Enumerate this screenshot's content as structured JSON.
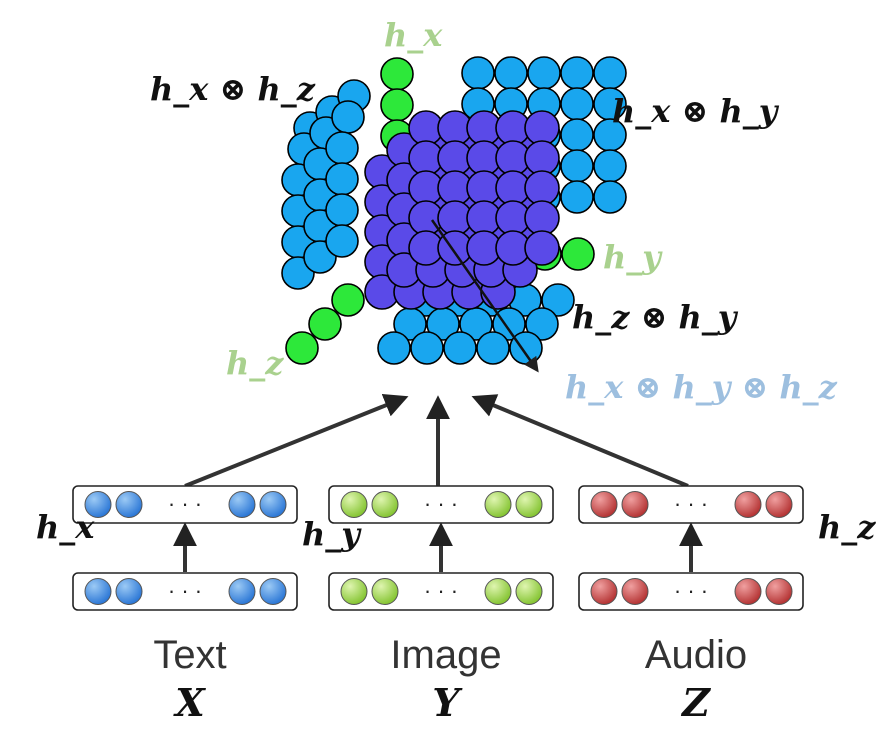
{
  "tensor": {
    "labels": {
      "hx_green": "h_x",
      "hy_green": "h_y",
      "hz_green": "h_z",
      "hx_hz": "h_x ⊗ h_z",
      "hx_hy": "h_x ⊗ h_y",
      "hz_hy": "h_z ⊗ h_y",
      "triple": "h_x ⊗ h_y ⊗ h_z"
    }
  },
  "modalities": [
    {
      "name": "Text",
      "symbol": "X",
      "hidden": "h_x",
      "color": "#3d8fe0"
    },
    {
      "name": "Image",
      "symbol": "Y",
      "hidden": "h_y",
      "color": "#9ad24a"
    },
    {
      "name": "Audio",
      "symbol": "Z",
      "hidden": "h_z",
      "color": "#c94a4a"
    }
  ],
  "ellipsis": "· · ·",
  "colors": {
    "unimodal_green": "#2de83a",
    "bimodal_blue": "#19a6ef",
    "trimodal_purple": "#5a4ae8",
    "label_green": "#a9d18e",
    "label_lightblue": "#9dbfdf"
  }
}
